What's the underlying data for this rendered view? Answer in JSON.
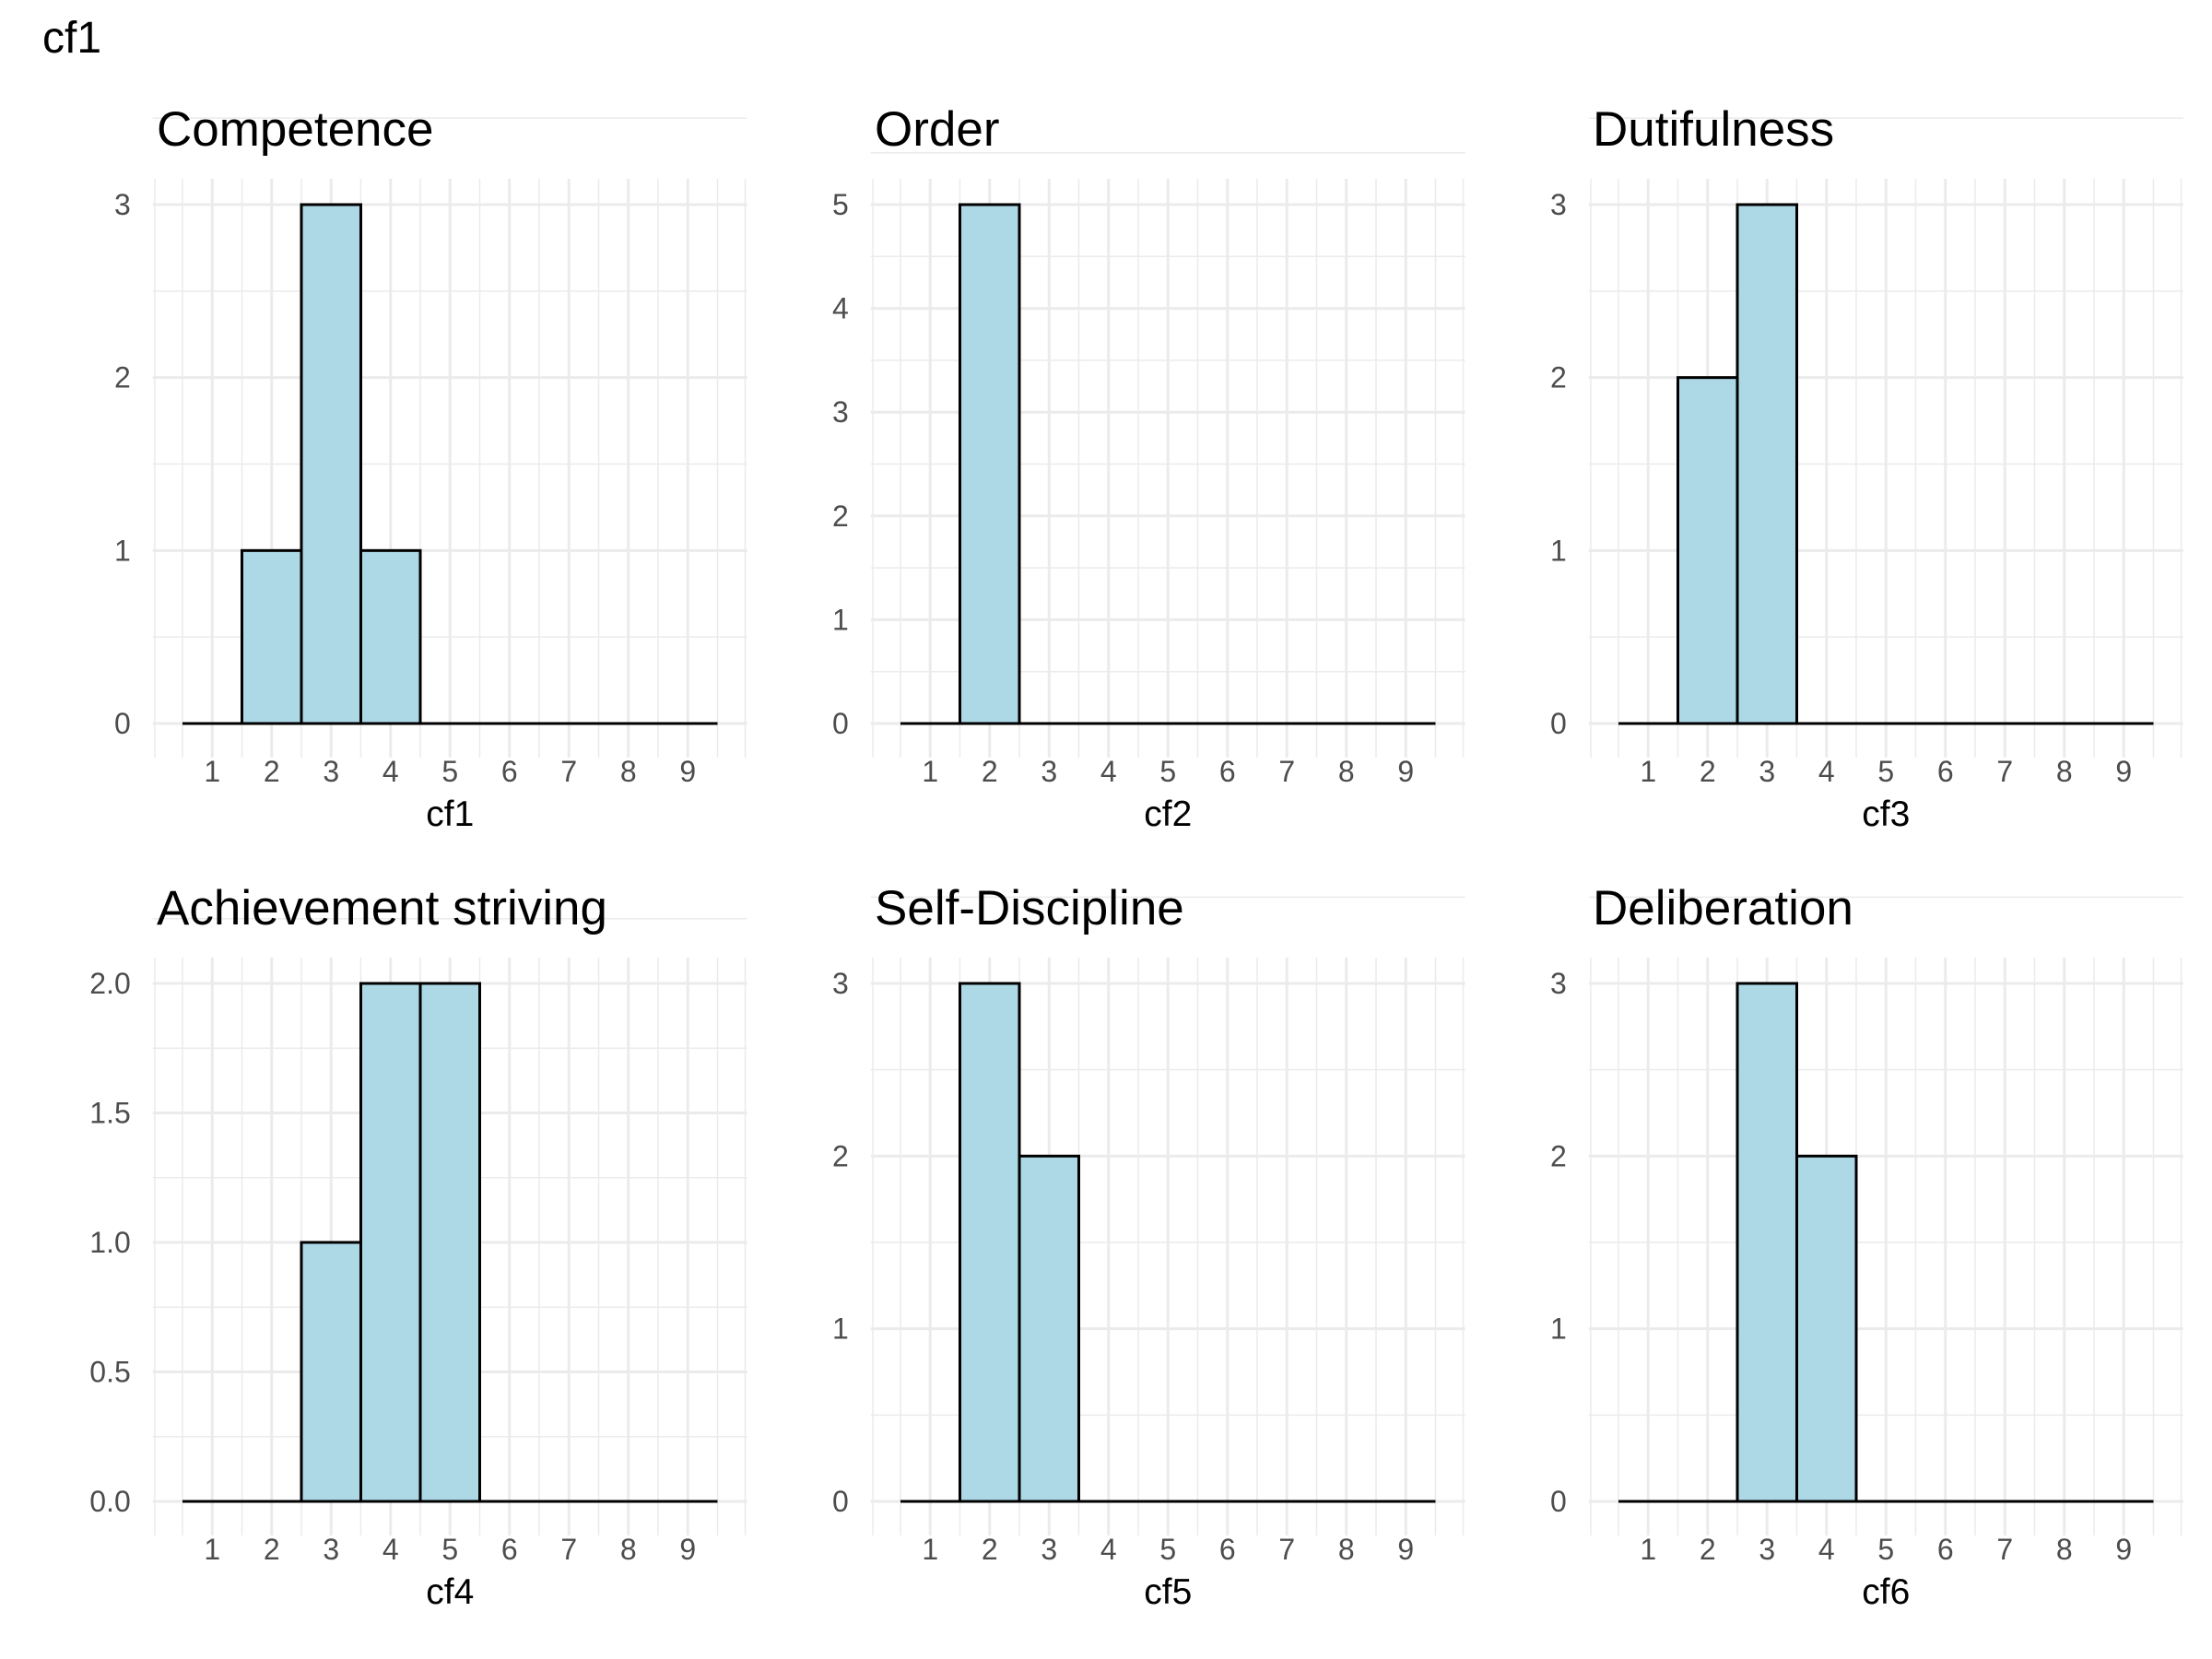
{
  "page_title": "cf1",
  "colors": {
    "bar_fill": "#ADD8E6",
    "bar_stroke": "#000000",
    "grid": "#EBEBEB",
    "tick_text": "#4D4D4D"
  },
  "chart_data": [
    {
      "type": "bar",
      "title": "Competence",
      "xlabel": "cf1",
      "ylabel": "",
      "categories": [
        "1",
        "2",
        "3",
        "4",
        "5",
        "6",
        "7",
        "8",
        "9"
      ],
      "values": [
        0,
        1,
        3,
        1,
        0,
        0,
        0,
        0,
        0
      ],
      "ylim": [
        0,
        3
      ],
      "yticks": [
        "0",
        "1",
        "2",
        "3"
      ],
      "grid": true
    },
    {
      "type": "bar",
      "title": "Order",
      "xlabel": "cf2",
      "ylabel": "",
      "categories": [
        "1",
        "2",
        "3",
        "4",
        "5",
        "6",
        "7",
        "8",
        "9"
      ],
      "values": [
        0,
        5,
        0,
        0,
        0,
        0,
        0,
        0,
        0
      ],
      "ylim": [
        0,
        5
      ],
      "yticks": [
        "0",
        "1",
        "2",
        "3",
        "4",
        "5"
      ],
      "grid": true
    },
    {
      "type": "bar",
      "title": "Dutifulness",
      "xlabel": "cf3",
      "ylabel": "",
      "categories": [
        "1",
        "2",
        "3",
        "4",
        "5",
        "6",
        "7",
        "8",
        "9"
      ],
      "values": [
        0,
        2,
        3,
        0,
        0,
        0,
        0,
        0,
        0
      ],
      "ylim": [
        0,
        3
      ],
      "yticks": [
        "0",
        "1",
        "2",
        "3"
      ],
      "grid": true
    },
    {
      "type": "bar",
      "title": "Achievement striving",
      "xlabel": "cf4",
      "ylabel": "",
      "categories": [
        "1",
        "2",
        "3",
        "4",
        "5",
        "6",
        "7",
        "8",
        "9"
      ],
      "values": [
        0,
        0,
        1,
        2,
        2,
        0,
        0,
        0,
        0
      ],
      "ylim": [
        0,
        2
      ],
      "yticks": [
        "0.0",
        "0.5",
        "1.0",
        "1.5",
        "2.0"
      ],
      "grid": true
    },
    {
      "type": "bar",
      "title": "Self-Discipline",
      "xlabel": "cf5",
      "ylabel": "",
      "categories": [
        "1",
        "2",
        "3",
        "4",
        "5",
        "6",
        "7",
        "8",
        "9"
      ],
      "values": [
        0,
        3,
        2,
        0,
        0,
        0,
        0,
        0,
        0
      ],
      "ylim": [
        0,
        3
      ],
      "yticks": [
        "0",
        "1",
        "2",
        "3"
      ],
      "grid": true
    },
    {
      "type": "bar",
      "title": "Deliberation",
      "xlabel": "cf6",
      "ylabel": "",
      "categories": [
        "1",
        "2",
        "3",
        "4",
        "5",
        "6",
        "7",
        "8",
        "9"
      ],
      "values": [
        0,
        0,
        3,
        2,
        0,
        0,
        0,
        0,
        0
      ],
      "ylim": [
        0,
        3
      ],
      "yticks": [
        "0",
        "1",
        "2",
        "3"
      ],
      "grid": true
    }
  ]
}
